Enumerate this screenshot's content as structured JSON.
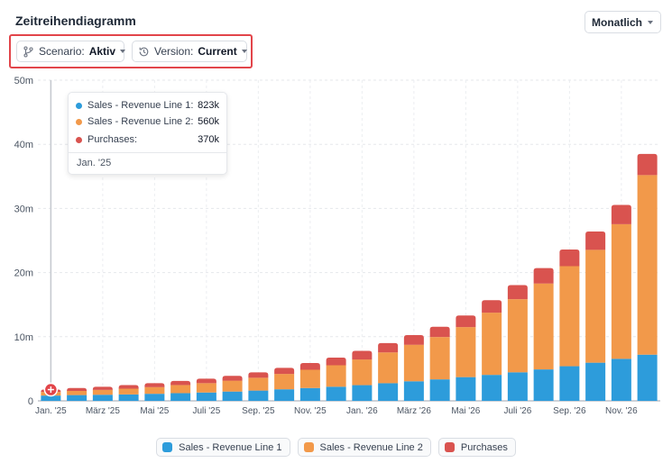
{
  "header": {
    "title": "Zeitreihendiagramm",
    "period_label": "Monatlich"
  },
  "filters": {
    "scenario_label": "Scenario:",
    "scenario_value": "Aktiv",
    "version_label": "Version:",
    "version_value": "Current"
  },
  "colors": {
    "line1": "#2d9cdb",
    "line2": "#f2994a",
    "purchases": "#d9534f",
    "highlight": "#e2454a"
  },
  "tooltip": {
    "rows": [
      {
        "name": "Sales - Revenue Line 1:",
        "value": "823k"
      },
      {
        "name": "Sales - Revenue Line 2:",
        "value": "560k"
      },
      {
        "name": "Purchases:",
        "value": "370k"
      }
    ],
    "date": "Jan. '25"
  },
  "chart_data": {
    "type": "bar",
    "stacked": true,
    "categories": [
      "Jan. '25",
      "Feb. '25",
      "März '25",
      "Apr. '25",
      "Mai '25",
      "Juni '25",
      "Juli '25",
      "Aug. '25",
      "Sep. '25",
      "Okt. '25",
      "Nov. '25",
      "Dez. '25",
      "Jan. '26",
      "Feb. '26",
      "März '26",
      "Apr. '26",
      "Mai '26",
      "Juni '26",
      "Juli '26",
      "Aug. '26",
      "Sep. '26",
      "Okt. '26",
      "Nov. '26",
      "Dez. '26"
    ],
    "x_tick_labels": [
      "Jan. '25",
      "März '25",
      "Mai '25",
      "Juli '25",
      "Sep. '25",
      "Nov. '25",
      "Jan. '26",
      "März '26",
      "Mai '26",
      "Juli '26",
      "Sep. '26",
      "Nov. '26"
    ],
    "series": [
      {
        "name": "Sales - Revenue Line 1",
        "values": [
          0.823,
          0.9,
          0.95,
          1.0,
          1.1,
          1.2,
          1.3,
          1.45,
          1.6,
          1.8,
          2.0,
          2.2,
          2.45,
          2.75,
          3.05,
          3.35,
          3.7,
          4.05,
          4.45,
          4.9,
          5.4,
          5.95,
          6.55,
          7.2
        ]
      },
      {
        "name": "Sales - Revenue Line 2",
        "values": [
          0.56,
          0.65,
          0.75,
          0.9,
          1.05,
          1.25,
          1.45,
          1.7,
          2.0,
          2.4,
          2.85,
          3.35,
          4.0,
          4.8,
          5.7,
          6.6,
          7.8,
          9.7,
          11.4,
          13.4,
          15.6,
          17.6,
          21.0,
          28.0
        ]
      },
      {
        "name": "Purchases",
        "values": [
          0.37,
          0.45,
          0.5,
          0.55,
          0.6,
          0.65,
          0.7,
          0.75,
          0.85,
          0.95,
          1.05,
          1.2,
          1.35,
          1.45,
          1.5,
          1.6,
          1.8,
          1.95,
          2.2,
          2.4,
          2.6,
          2.85,
          3.0,
          3.3
        ]
      }
    ],
    "y_ticks": [
      "0",
      "10m",
      "20m",
      "30m",
      "40m",
      "50m"
    ],
    "ylim": [
      0,
      50
    ],
    "y_unit": "m",
    "grid": true,
    "legend": "bottom-center",
    "highlighted_category": "Jan. '25"
  }
}
